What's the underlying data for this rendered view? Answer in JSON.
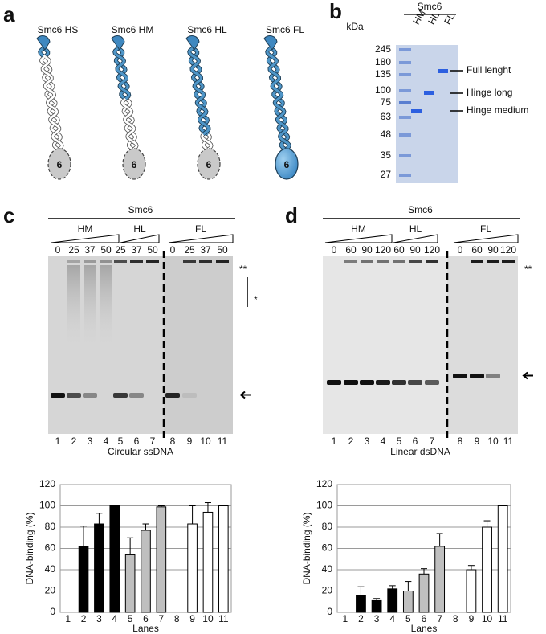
{
  "panels": {
    "a": {
      "letter": "a",
      "proteins": [
        {
          "label": "Smc6 HS",
          "head": "6"
        },
        {
          "label": "Smc6 HM",
          "head": "6"
        },
        {
          "label": "Smc6 HL",
          "head": "6"
        },
        {
          "label": "Smc6 FL",
          "head": "6"
        }
      ]
    },
    "b": {
      "letter": "b",
      "title": "Smc6",
      "lanes": [
        "HM",
        "HL",
        "FL"
      ],
      "unit": "kDa",
      "markers": [
        245,
        180,
        135,
        100,
        75,
        63,
        48,
        35,
        27
      ],
      "annotations": [
        "Full lenght",
        "Hinge long",
        "Hinge medium"
      ]
    },
    "c": {
      "letter": "c",
      "title": "Smc6",
      "groups": [
        "HM",
        "HL",
        "FL"
      ],
      "concentrations": [
        0,
        25,
        37,
        50,
        25,
        37,
        50,
        0,
        25,
        37,
        50
      ],
      "double_star": "**",
      "single_star": "*",
      "lanes": [
        "1",
        "2",
        "3",
        "4",
        "5",
        "6",
        "7",
        "8",
        "9",
        "10",
        "11"
      ],
      "substrate": "Circular ssDNA"
    },
    "d": {
      "letter": "d",
      "title": "Smc6",
      "groups": [
        "HM",
        "HL",
        "FL"
      ],
      "concentrations": [
        0,
        60,
        90,
        120,
        60,
        90,
        120,
        0,
        60,
        90,
        120
      ],
      "double_star": "**",
      "lanes": [
        "1",
        "2",
        "3",
        "4",
        "5",
        "6",
        "7",
        "8",
        "9",
        "10",
        "11"
      ],
      "substrate": "Linear dsDNA"
    }
  },
  "chart_data": [
    {
      "type": "bar",
      "ylabel": "DNA-binding (%)",
      "xlabel": "Lanes",
      "categories": [
        "1",
        "2",
        "3",
        "4",
        "5",
        "6",
        "7",
        "8",
        "9",
        "10",
        "11"
      ],
      "values": [
        0,
        62,
        83,
        100,
        54,
        77,
        99,
        0,
        83,
        94,
        100
      ],
      "errors": [
        0,
        19,
        10,
        0,
        16,
        6,
        1,
        0,
        17,
        9,
        0
      ],
      "colors": [
        "#000000",
        "#000000",
        "#000000",
        "#000000",
        "#bfbfbf",
        "#bfbfbf",
        "#bfbfbf",
        "#ffffff",
        "#ffffff",
        "#ffffff",
        "#ffffff"
      ],
      "ylim": [
        0,
        120
      ],
      "yticks": [
        0,
        20,
        40,
        60,
        80,
        100,
        120
      ],
      "grid": true
    },
    {
      "type": "bar",
      "ylabel": "DNA-binding (%)",
      "xlabel": "Lanes",
      "categories": [
        "1",
        "2",
        "3",
        "4",
        "5",
        "6",
        "7",
        "8",
        "9",
        "10",
        "11"
      ],
      "values": [
        0,
        16,
        11,
        22,
        20,
        36,
        62,
        0,
        40,
        80,
        100
      ],
      "errors": [
        0,
        8,
        2,
        3,
        9,
        5,
        12,
        0,
        4,
        6,
        0
      ],
      "colors": [
        "#000000",
        "#000000",
        "#000000",
        "#000000",
        "#bfbfbf",
        "#bfbfbf",
        "#bfbfbf",
        "#ffffff",
        "#ffffff",
        "#ffffff",
        "#ffffff"
      ],
      "ylim": [
        0,
        120
      ],
      "yticks": [
        0,
        20,
        40,
        60,
        80,
        100,
        120
      ],
      "grid": true
    }
  ]
}
